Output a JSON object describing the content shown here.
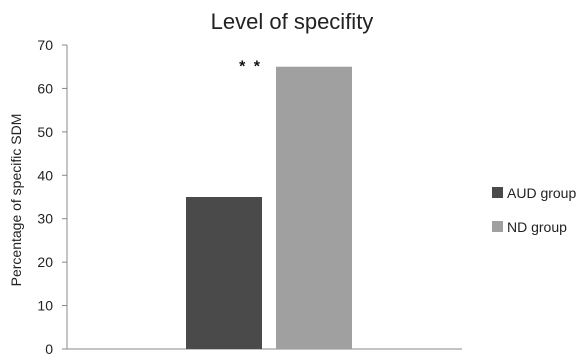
{
  "chart_data": {
    "type": "bar",
    "title": "Level of specifity",
    "xlabel": "",
    "ylabel": "Percentage of specific SDM",
    "ylim": [
      0,
      70
    ],
    "yticks": [
      0,
      10,
      20,
      30,
      40,
      50,
      60,
      70
    ],
    "grid": false,
    "legend_position": "right",
    "series": [
      {
        "name": "AUD group",
        "values": [
          35
        ],
        "color": "#4a4a4a"
      },
      {
        "name": "ND group",
        "values": [
          65
        ],
        "color": "#a0a0a0"
      }
    ],
    "annotations": [
      {
        "text": "* *",
        "series": "ND group"
      }
    ]
  }
}
